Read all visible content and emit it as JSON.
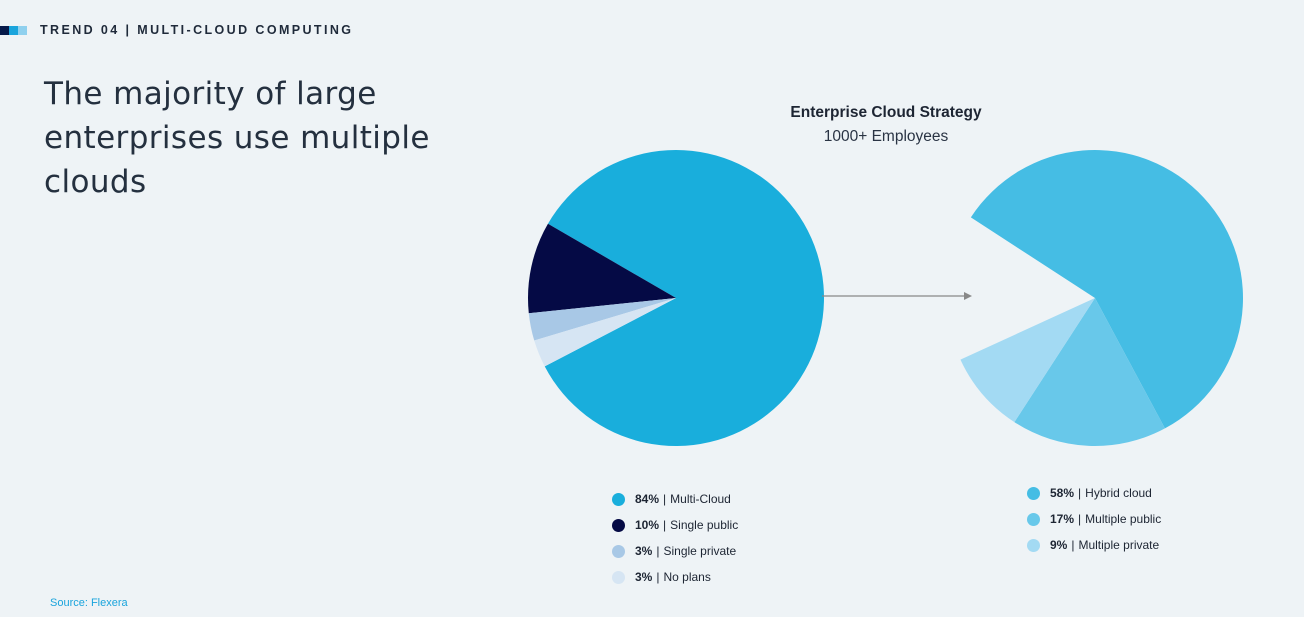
{
  "header": {
    "kicker": "TREND 04 | MULTI-CLOUD COMPUTING",
    "kicker_colors": [
      "#061a4a",
      "#1aa4dc",
      "#8fd0ee"
    ]
  },
  "headline": {
    "line1": "The majority of large",
    "line2": "enterprises use multiple clouds"
  },
  "chart_header": {
    "title": "Enterprise Cloud Strategy",
    "subtitle": "1000+ Employees"
  },
  "chart_data": [
    {
      "type": "pie",
      "title": "Enterprise Cloud Strategy",
      "subtitle": "1000+ Employees",
      "slices": [
        {
          "label": "Multi-Cloud",
          "pct_label": "84%",
          "value": 84,
          "color": "#19aedc"
        },
        {
          "label": "Single public",
          "pct_label": "10%",
          "value": 10,
          "color": "#050a45"
        },
        {
          "label": "Single private",
          "pct_label": "3%",
          "value": 3,
          "color": "#a8c8e6"
        },
        {
          "label": "No plans",
          "pct_label": "3%",
          "value": 3,
          "color": "#d6e5f3"
        }
      ]
    },
    {
      "type": "pie",
      "slices": [
        {
          "label": "Hybrid cloud",
          "pct_label": "58%",
          "value": 58,
          "color": "#45bde4"
        },
        {
          "label": "Multiple public",
          "pct_label": "17%",
          "value": 17,
          "color": "#68c8ea"
        },
        {
          "label": "Multiple private",
          "pct_label": "9%",
          "value": 9,
          "color": "#a3daf3"
        }
      ],
      "remainder_value": 16,
      "remainder_shown": false
    }
  ],
  "arrow_color": "#888888",
  "source": "Source: Flexera"
}
